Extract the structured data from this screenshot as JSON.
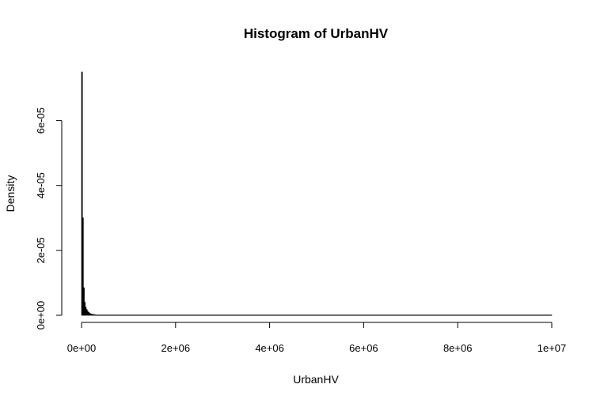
{
  "chart_data": {
    "type": "bar",
    "title": "Histogram of UrbanHV",
    "xlabel": "UrbanHV",
    "ylabel": "Density",
    "xlim": [
      0,
      10000000
    ],
    "ylim": [
      0,
      7.5e-05
    ],
    "x_ticks": [
      {
        "value": 0,
        "label": "0e+00"
      },
      {
        "value": 2000000,
        "label": "2e+06"
      },
      {
        "value": 4000000,
        "label": "4e+06"
      },
      {
        "value": 6000000,
        "label": "6e+06"
      },
      {
        "value": 8000000,
        "label": "8e+06"
      },
      {
        "value": 10000000,
        "label": "1e+07"
      }
    ],
    "y_ticks": [
      {
        "value": 0,
        "label": "0e+00"
      },
      {
        "value": 2e-05,
        "label": "2e-05"
      },
      {
        "value": 4e-05,
        "label": "4e-05"
      },
      {
        "value": 6e-05,
        "label": "6e-05"
      }
    ],
    "bins": [
      {
        "x0": 0,
        "x1": 20000,
        "density": 7.5e-05
      },
      {
        "x0": 20000,
        "x1": 40000,
        "density": 3e-05
      },
      {
        "x0": 40000,
        "x1": 60000,
        "density": 8.5e-06
      },
      {
        "x0": 60000,
        "x1": 80000,
        "density": 4e-06
      },
      {
        "x0": 80000,
        "x1": 100000,
        "density": 2.5e-06
      },
      {
        "x0": 100000,
        "x1": 120000,
        "density": 1.8e-06
      },
      {
        "x0": 120000,
        "x1": 140000,
        "density": 1.3e-06
      },
      {
        "x0": 140000,
        "x1": 160000,
        "density": 9e-07
      },
      {
        "x0": 160000,
        "x1": 180000,
        "density": 7e-07
      },
      {
        "x0": 180000,
        "x1": 200000,
        "density": 5e-07
      },
      {
        "x0": 200000,
        "x1": 220000,
        "density": 4e-07
      },
      {
        "x0": 220000,
        "x1": 240000,
        "density": 3e-07
      },
      {
        "x0": 240000,
        "x1": 260000,
        "density": 2.5e-07
      },
      {
        "x0": 260000,
        "x1": 280000,
        "density": 2e-07
      },
      {
        "x0": 280000,
        "x1": 300000,
        "density": 1.5e-07
      },
      {
        "x0": 300000,
        "x1": 10000000,
        "density": 1e-07
      }
    ]
  }
}
